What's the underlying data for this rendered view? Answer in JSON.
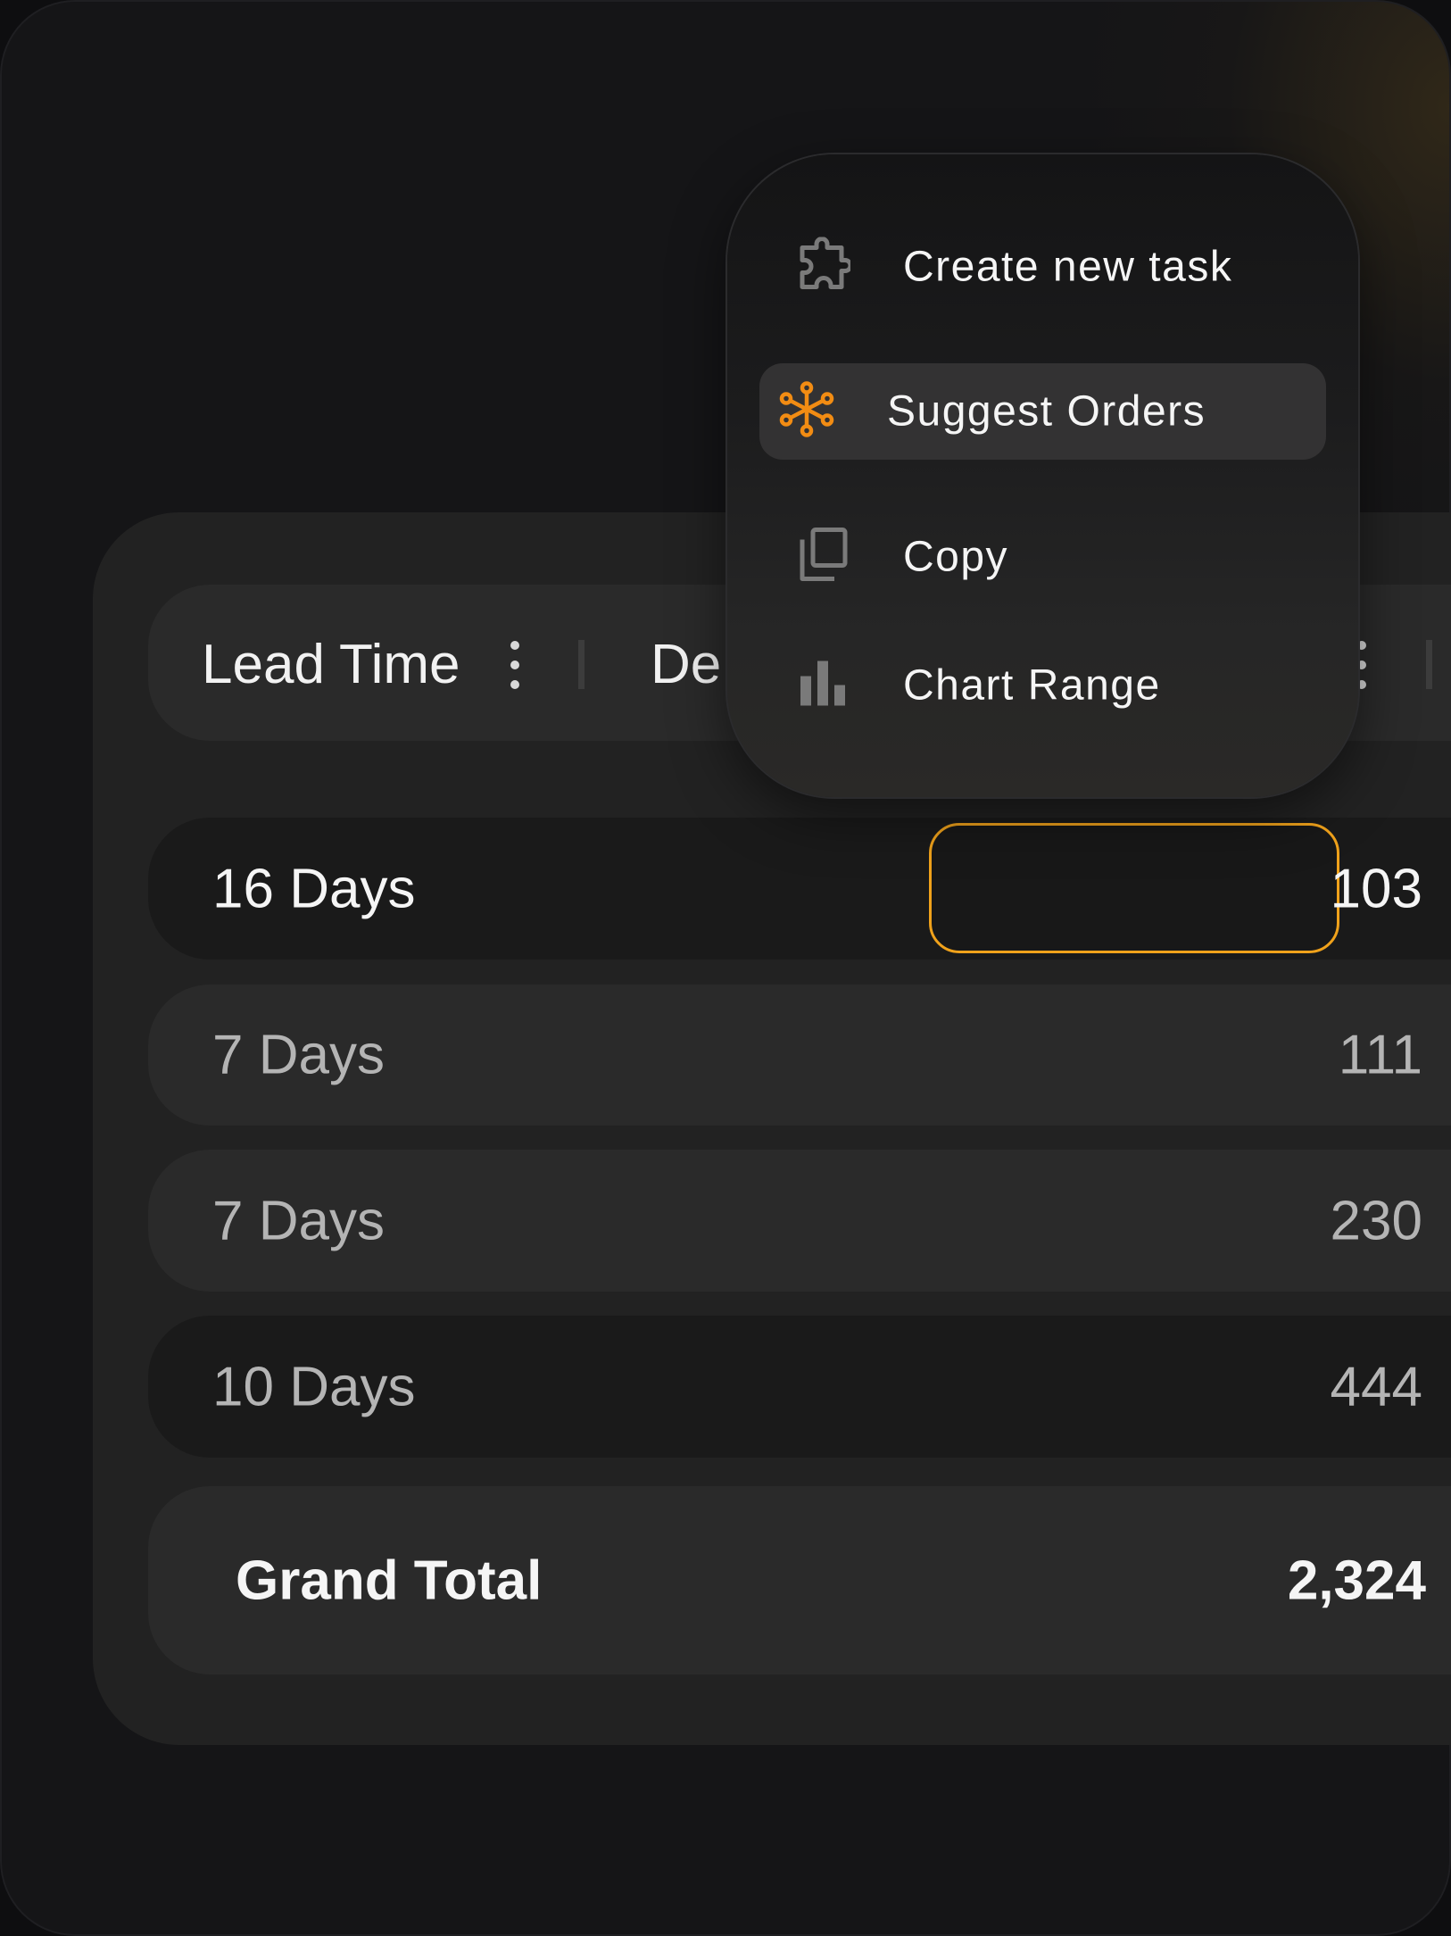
{
  "colors": {
    "accent": "#f0a21b",
    "icon_orange": "#f28c13",
    "background": "#151517",
    "panel": "#222222"
  },
  "table": {
    "headers": [
      {
        "label": "Lead Time"
      },
      {
        "label": "De"
      }
    ],
    "rows": [
      {
        "lead_time": "16 Days",
        "value": "103",
        "selected": true
      },
      {
        "lead_time": "7 Days",
        "value": "111"
      },
      {
        "lead_time": "7 Days",
        "value": "230"
      },
      {
        "lead_time": "10 Days",
        "value": "444"
      }
    ],
    "total": {
      "label": "Grand Total",
      "value": "2,324"
    }
  },
  "context_menu": {
    "items": [
      {
        "label": "Create new task",
        "icon": "puzzle-icon"
      },
      {
        "label": "Suggest Orders",
        "icon": "network-nodes-icon",
        "active": true
      },
      {
        "label": "Copy",
        "icon": "copy-icon"
      },
      {
        "label": "Chart Range",
        "icon": "bar-chart-icon"
      }
    ]
  }
}
